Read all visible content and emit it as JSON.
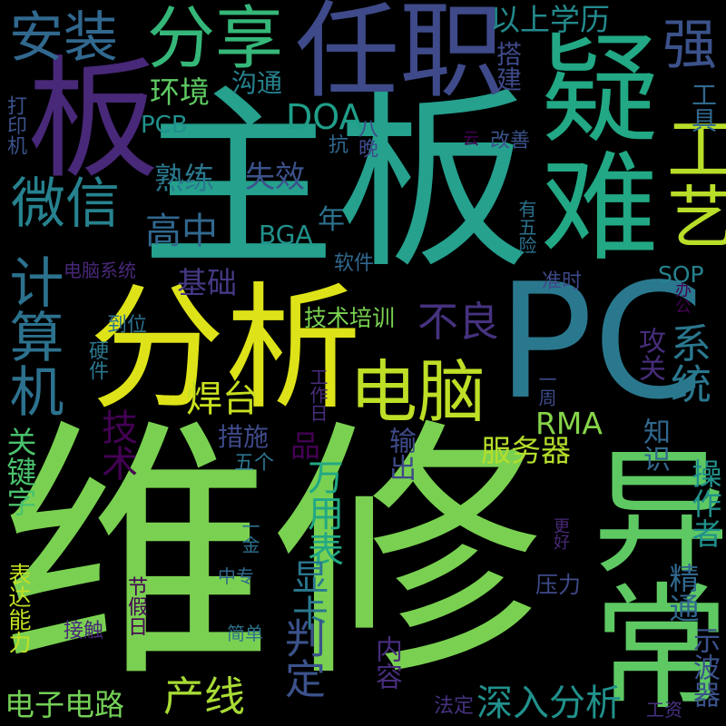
{
  "words": [
    {
      "text": "维修",
      "color": "#7ad151"
    },
    {
      "text": "主板",
      "color": "#25a18e"
    },
    {
      "text": "PC",
      "color": "#2a788e"
    },
    {
      "text": "分析",
      "color": "#dde318"
    },
    {
      "text": "异常",
      "color": "#5ec962"
    },
    {
      "text": "疑难",
      "color": "#22a884"
    },
    {
      "text": "任职",
      "color": "#3e4a89"
    },
    {
      "text": "板",
      "color": "#482878"
    },
    {
      "text": "电脑",
      "color": "#bddf26"
    },
    {
      "text": "分享",
      "color": "#35b779"
    },
    {
      "text": "安装",
      "color": "#31688e"
    },
    {
      "text": "微信",
      "color": "#26828e"
    },
    {
      "text": "计算机",
      "color": "#2c728e"
    },
    {
      "text": "工艺",
      "color": "#b8de29"
    },
    {
      "text": "强",
      "color": "#3b528b"
    },
    {
      "text": "以上学历",
      "color": "#238a8d"
    },
    {
      "text": "搭建",
      "color": "#3e4989"
    },
    {
      "text": "工具",
      "color": "#31688e"
    },
    {
      "text": "环境",
      "color": "#5ec962"
    },
    {
      "text": "沟通",
      "color": "#26828e"
    },
    {
      "text": "DOA",
      "color": "#1f9e89"
    },
    {
      "text": "PCB",
      "color": "#21918c"
    },
    {
      "text": "熟练",
      "color": "#2a788e"
    },
    {
      "text": "失效",
      "color": "#3b528b"
    },
    {
      "text": "高中",
      "color": "#31688e"
    },
    {
      "text": "BGA",
      "color": "#21918c"
    },
    {
      "text": "年",
      "color": "#2c728e"
    },
    {
      "text": "基础",
      "color": "#443983"
    },
    {
      "text": "不良",
      "color": "#46327e"
    },
    {
      "text": "系统",
      "color": "#2a788e"
    },
    {
      "text": "技术培训",
      "color": "#7ad151"
    },
    {
      "text": "焊台",
      "color": "#c8e020"
    },
    {
      "text": "RMA",
      "color": "#86d549"
    },
    {
      "text": "品",
      "color": "#440154"
    },
    {
      "text": "服务器",
      "color": "#b5de2b"
    },
    {
      "text": "输出",
      "color": "#3e4a89"
    },
    {
      "text": "知识",
      "color": "#31688e"
    },
    {
      "text": "技术",
      "color": "#440154"
    },
    {
      "text": "万用表",
      "color": "#22a884"
    },
    {
      "text": "关键字",
      "color": "#4ac16d"
    },
    {
      "text": "措施",
      "color": "#3e4a89"
    },
    {
      "text": "五个",
      "color": "#2c728e"
    },
    {
      "text": "显卡",
      "color": "#2a788e"
    },
    {
      "text": "操作者",
      "color": "#21918c"
    },
    {
      "text": "精通",
      "color": "#31688e"
    },
    {
      "text": "判定",
      "color": "#3b528b"
    },
    {
      "text": "产线",
      "color": "#a8db34"
    },
    {
      "text": "电子电路",
      "color": "#73d056"
    },
    {
      "text": "深入分析",
      "color": "#21918c"
    },
    {
      "text": "示波器",
      "color": "#3b528b"
    },
    {
      "text": "内容",
      "color": "#472d7b"
    },
    {
      "text": "法定",
      "color": "#46327e"
    },
    {
      "text": "工资",
      "color": "#46327e"
    },
    {
      "text": "表达能力",
      "color": "#c2df23"
    },
    {
      "text": "压力",
      "color": "#3e4a89"
    },
    {
      "text": "接触",
      "color": "#482878"
    },
    {
      "text": "简单",
      "color": "#2c728e"
    },
    {
      "text": "节假日",
      "color": "#440154"
    },
    {
      "text": "中专",
      "color": "#31688e"
    },
    {
      "text": "一金",
      "color": "#2c728e"
    },
    {
      "text": "更好",
      "color": "#482878"
    },
    {
      "text": "工作日",
      "color": "#472d7b"
    },
    {
      "text": "一周",
      "color": "#3e4a89"
    },
    {
      "text": "攻关",
      "color": "#472d7b"
    },
    {
      "text": "硬件",
      "color": "#2a788e"
    },
    {
      "text": "到位",
      "color": "#2c728e"
    },
    {
      "text": "电脑系统",
      "color": "#482878"
    },
    {
      "text": "软件",
      "color": "#31688e"
    },
    {
      "text": "准时",
      "color": "#3e4a89"
    },
    {
      "text": "有五险",
      "color": "#2c728e"
    },
    {
      "text": "办公",
      "color": "#440154"
    },
    {
      "text": "SOP",
      "color": "#26828e"
    },
    {
      "text": "改善",
      "color": "#3b528b"
    },
    {
      "text": "云",
      "color": "#440154"
    },
    {
      "text": "八晚",
      "color": "#3e4a89"
    },
    {
      "text": "抗",
      "color": "#31688e"
    },
    {
      "text": "打印机",
      "color": "#3b528b"
    }
  ]
}
